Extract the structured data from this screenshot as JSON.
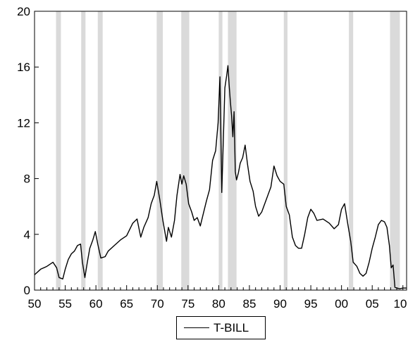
{
  "chart_data": {
    "type": "line",
    "title": "",
    "xlabel": "",
    "ylabel": "",
    "xlim": [
      1950,
      2010.6
    ],
    "ylim": [
      0,
      20
    ],
    "x_ticks": [
      1950,
      1955,
      1960,
      1965,
      1970,
      1975,
      1980,
      1985,
      1990,
      1995,
      2000,
      2005,
      2010
    ],
    "x_tick_labels": [
      "50",
      "55",
      "60",
      "65",
      "70",
      "75",
      "80",
      "85",
      "90",
      "95",
      "00",
      "05",
      "10"
    ],
    "y_ticks": [
      0,
      4,
      8,
      12,
      16,
      20
    ],
    "y_tick_labels": [
      "0",
      "4",
      "8",
      "12",
      "16",
      "20"
    ],
    "grid": false,
    "legend": {
      "position": "bottom-center",
      "entries": [
        "T-BILL"
      ]
    },
    "recession_shading": [
      [
        1953.5,
        1954.3
      ],
      [
        1957.6,
        1958.3
      ],
      [
        1960.3,
        1961.1
      ],
      [
        1969.9,
        1970.9
      ],
      [
        1973.9,
        1975.2
      ],
      [
        1980.0,
        1980.6
      ],
      [
        1981.5,
        1982.9
      ],
      [
        1990.6,
        1991.2
      ],
      [
        2001.2,
        2001.9
      ],
      [
        2007.9,
        2009.5
      ]
    ],
    "series": [
      {
        "name": "T-BILL",
        "color": "#000000",
        "x": [
          1950,
          1951,
          1952,
          1953,
          1953.6,
          1954,
          1954.6,
          1955,
          1955.5,
          1956,
          1956.5,
          1957,
          1957.5,
          1957.8,
          1958.2,
          1958.6,
          1959,
          1959.5,
          1959.9,
          1960.3,
          1960.8,
          1961.5,
          1962,
          1963,
          1964,
          1965,
          1966,
          1966.7,
          1967.3,
          1967.8,
          1968.5,
          1969,
          1969.5,
          1969.9,
          1970.4,
          1970.9,
          1971.5,
          1971.8,
          1972.3,
          1972.8,
          1973.2,
          1973.7,
          1974.0,
          1974.3,
          1974.7,
          1975.1,
          1975.6,
          1976,
          1976.5,
          1977,
          1977.5,
          1978,
          1978.5,
          1979,
          1979.5,
          1979.9,
          1980.2,
          1980.5,
          1980.8,
          1981.0,
          1981.3,
          1981.5,
          1981.7,
          1981.9,
          1982.1,
          1982.3,
          1982.5,
          1982.7,
          1982.9,
          1983.2,
          1983.5,
          1983.9,
          1984.3,
          1984.7,
          1985.1,
          1985.6,
          1986,
          1986.5,
          1987,
          1987.5,
          1988,
          1988.5,
          1989.0,
          1989.5,
          1990,
          1990.6,
          1991,
          1991.5,
          1992,
          1992.5,
          1993,
          1993.5,
          1994,
          1994.5,
          1995,
          1995.5,
          1996,
          1997,
          1998,
          1998.8,
          1999.5,
          2000,
          2000.5,
          2001,
          2001.5,
          2001.9,
          2002.5,
          2003,
          2003.5,
          2004,
          2004.5,
          2005,
          2005.5,
          2006,
          2006.5,
          2007,
          2007.4,
          2007.8,
          2008.1,
          2008.4,
          2008.7,
          2009,
          2009.5,
          2010,
          2010.6
        ],
        "values": [
          1.1,
          1.5,
          1.7,
          2.0,
          1.6,
          0.9,
          0.8,
          1.5,
          2.2,
          2.6,
          2.8,
          3.2,
          3.3,
          2.0,
          0.9,
          2.0,
          3.0,
          3.6,
          4.2,
          3.3,
          2.3,
          2.4,
          2.8,
          3.2,
          3.6,
          3.9,
          4.8,
          5.1,
          3.8,
          4.5,
          5.2,
          6.2,
          6.8,
          7.8,
          6.5,
          5.0,
          3.5,
          4.5,
          3.8,
          5.0,
          6.8,
          8.3,
          7.6,
          8.2,
          7.6,
          6.2,
          5.6,
          5.0,
          5.2,
          4.6,
          5.5,
          6.4,
          7.2,
          9.3,
          10.0,
          12.0,
          15.3,
          7.0,
          11.5,
          14.5,
          15.4,
          16.1,
          14.7,
          13.5,
          12.5,
          11.0,
          12.8,
          8.5,
          7.9,
          8.4,
          9.1,
          9.5,
          10.4,
          9.0,
          7.8,
          7.1,
          6.0,
          5.3,
          5.6,
          6.2,
          6.8,
          7.4,
          8.9,
          8.2,
          7.8,
          7.6,
          6.0,
          5.4,
          3.8,
          3.2,
          3.0,
          3.0,
          4.0,
          5.2,
          5.8,
          5.5,
          5.0,
          5.1,
          4.8,
          4.4,
          4.7,
          5.8,
          6.2,
          4.8,
          3.5,
          2.0,
          1.7,
          1.2,
          1.0,
          1.2,
          2.0,
          3.0,
          3.8,
          4.7,
          5.0,
          4.9,
          4.5,
          3.2,
          1.6,
          1.8,
          0.2,
          0.15,
          0.1,
          0.15,
          0.15
        ]
      }
    ]
  }
}
